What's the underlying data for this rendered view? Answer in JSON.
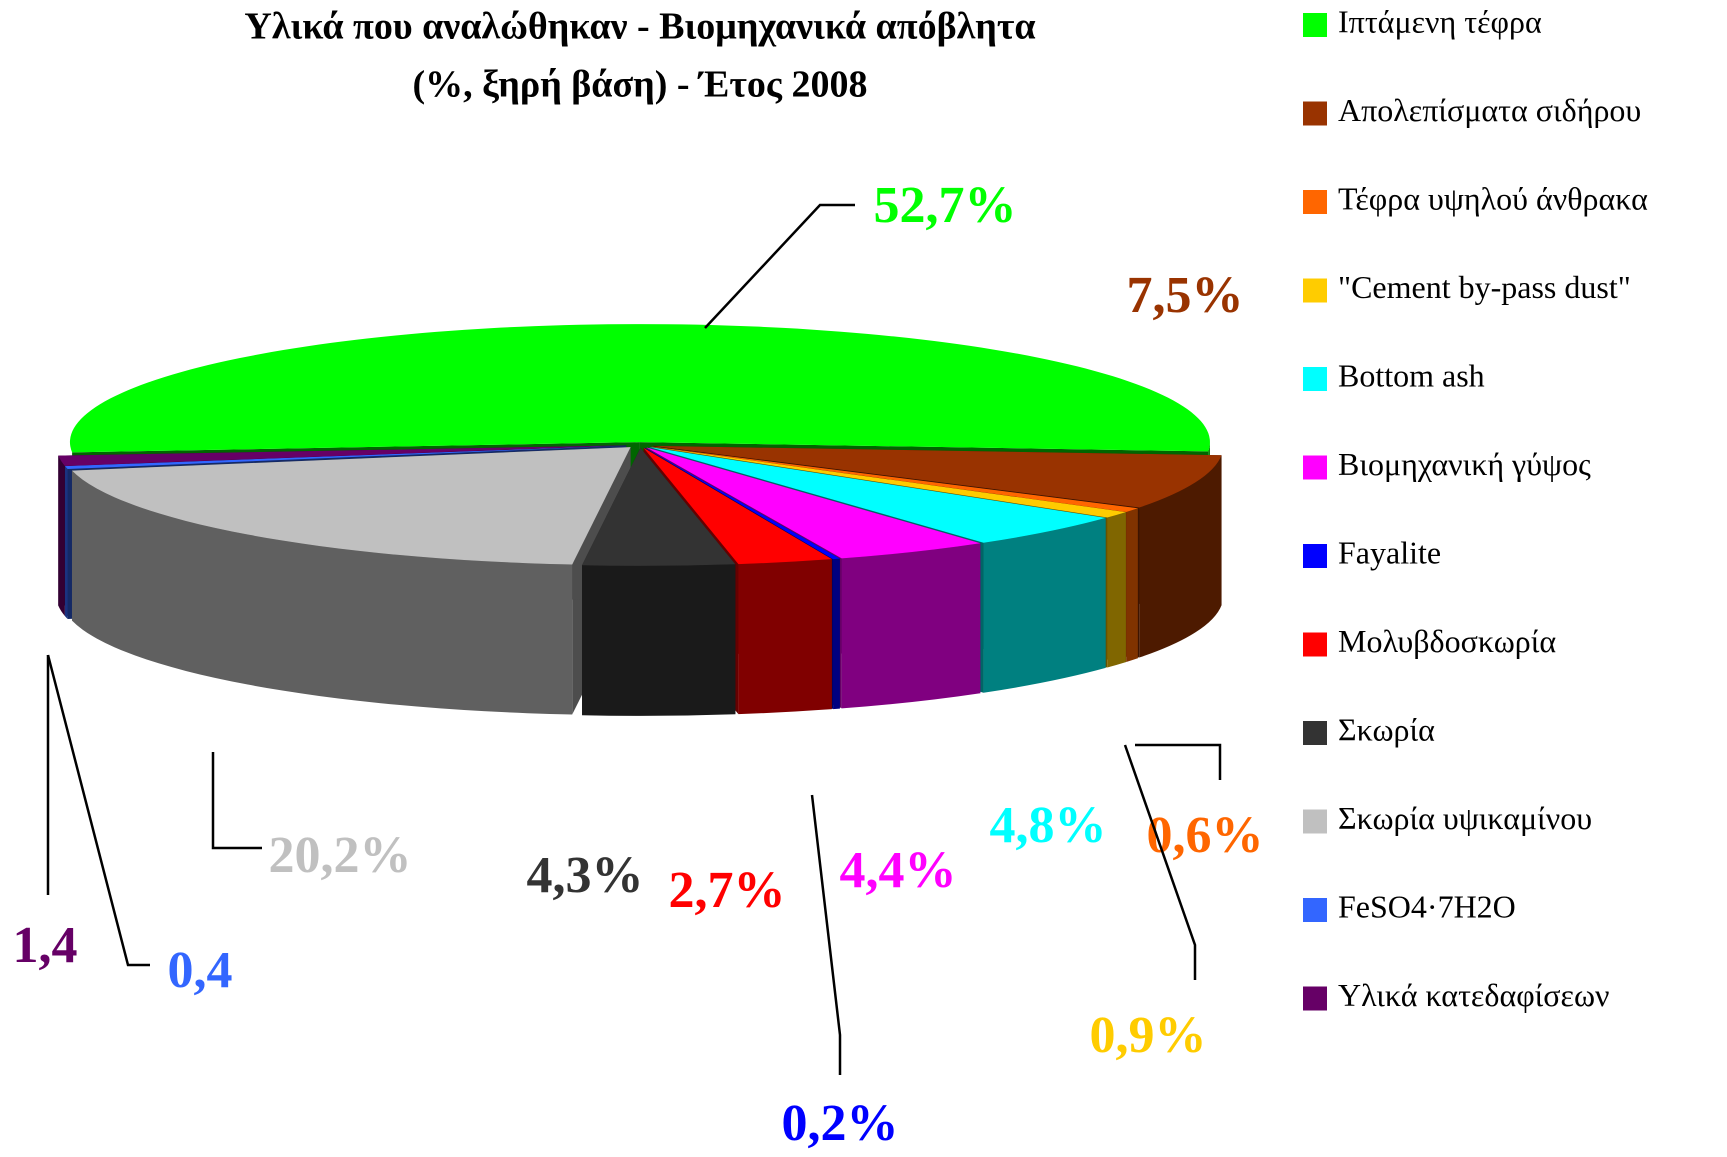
{
  "chart_data": {
    "type": "pie",
    "title": [
      "Υλικά που αναλώθηκαν - Βιομηχανικά απόβλητα",
      "(%, ξηρή βάση) - Έτος 2008"
    ],
    "categories": [
      "Ιπτάμενη τέφρα",
      "Απολεπίσματα σιδήρου",
      "Τέφρα υψηλού άνθρακα",
      "\"Cement by-pass dust\"",
      "Bottom ash",
      "Βιομηχανική γύψος",
      "Fayalite",
      "Μολυβδοσκωρία",
      "Σκωρία",
      "Σκωρία υψικαμίνου",
      "FeSO4·7H2O",
      "Υλικά κατεδαφίσεων"
    ],
    "values": [
      52.7,
      7.5,
      0.6,
      0.9,
      4.8,
      4.4,
      0.2,
      2.7,
      4.3,
      20.2,
      0.4,
      1.4
    ],
    "value_labels": [
      "52,7%",
      "7,5%",
      "0,6%",
      "0,9%",
      "4,8%",
      "4,4%",
      "0,2%",
      "2,7%",
      "4,3%",
      "20,2%",
      "0,4",
      "1,4"
    ],
    "colors": [
      "#00ff00",
      "#993300",
      "#ff6600",
      "#ffcc00",
      "#00ffff",
      "#ff00ff",
      "#0000ff",
      "#ff0000",
      "#333333",
      "#c0c0c0",
      "#3366ff",
      "#660066"
    ],
    "legend": "right"
  }
}
